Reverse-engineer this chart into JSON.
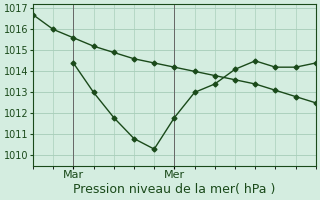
{
  "title": "Pression niveau de la mer( hPa )",
  "bg_color": "#d4ede0",
  "line_color": "#1a4a1a",
  "grid_color": "#aacfbb",
  "vline_color": "#666666",
  "ylim": [
    1009.5,
    1017.2
  ],
  "yticks": [
    1010,
    1011,
    1012,
    1013,
    1014,
    1015,
    1016,
    1017
  ],
  "xlim": [
    0,
    28
  ],
  "line1_x": [
    0,
    2,
    4,
    6,
    8,
    10,
    12,
    14,
    16,
    18,
    20,
    22,
    24,
    26,
    28
  ],
  "line1_y": [
    1016.7,
    1016.0,
    1015.6,
    1015.2,
    1014.9,
    1014.6,
    1014.4,
    1014.2,
    1014.0,
    1013.8,
    1013.6,
    1013.4,
    1013.1,
    1012.8,
    1012.5
  ],
  "line2_x": [
    4,
    6,
    8,
    10,
    12,
    14,
    16,
    18,
    20,
    22,
    24,
    26,
    28
  ],
  "line2_y": [
    1014.4,
    1013.0,
    1011.8,
    1010.8,
    1010.3,
    1011.8,
    1013.0,
    1013.4,
    1014.1,
    1014.5,
    1014.2,
    1014.2,
    1014.4
  ],
  "vlines_x": [
    4,
    14
  ],
  "xtick_labels": [
    "Mar",
    "Mer"
  ],
  "xtick_positions": [
    4,
    14
  ],
  "title_fontsize": 9,
  "ylabel_fontsize": 7,
  "xlabel_fontsize": 8,
  "marker": "D",
  "marker_size": 2.5,
  "linewidth": 1.0
}
